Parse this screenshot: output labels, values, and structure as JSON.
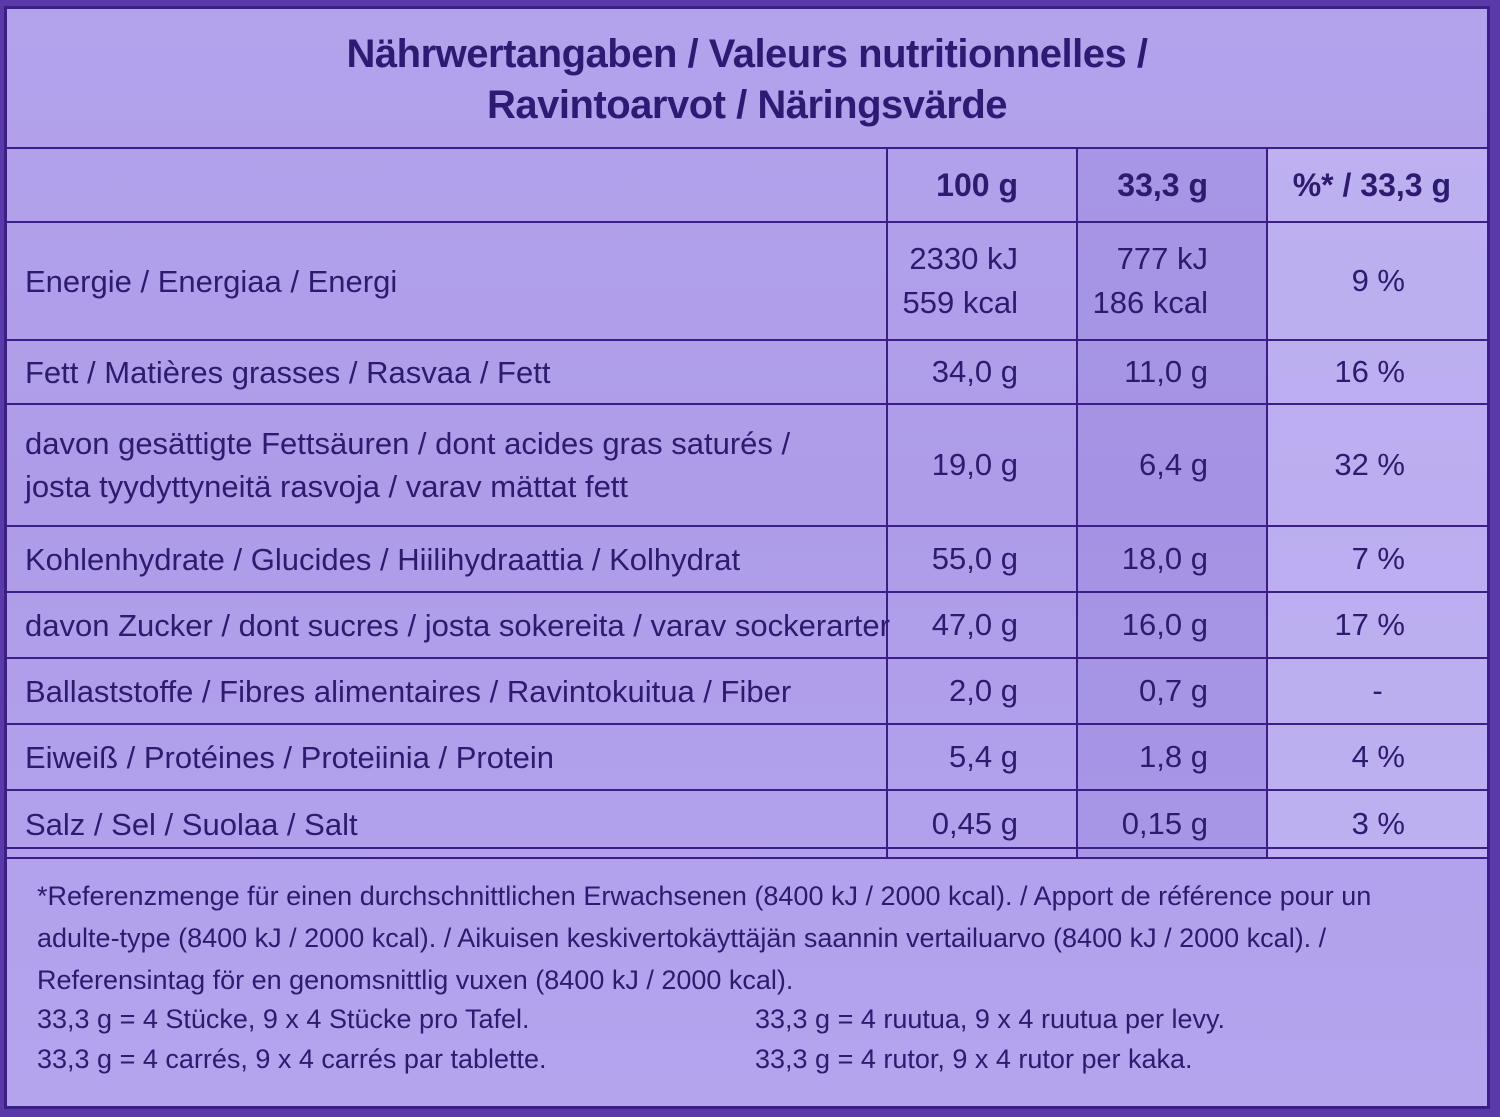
{
  "title": {
    "line1": "Nährwertangaben / Valeurs nutritionnelles /",
    "line2": "Ravintoarvot / Näringsvärde"
  },
  "table": {
    "headers": {
      "label": "",
      "per_100g": "100 g",
      "per_portion": "33,3 g",
      "pct_portion": "%* / 33,3 g"
    },
    "rows": [
      {
        "label_line1": "Energie / Energiaa / Energi",
        "label_line2": "",
        "per_100g_line1": "2330 kJ",
        "per_100g_line2": "559 kcal",
        "per_portion_line1": "777 kJ",
        "per_portion_line2": "186 kcal",
        "pct": "9 %"
      },
      {
        "label_line1": "Fett / Matières grasses / Rasvaa / Fett",
        "label_line2": "",
        "per_100g_line1": "34,0 g",
        "per_100g_line2": "",
        "per_portion_line1": "11,0 g",
        "per_portion_line2": "",
        "pct": "16 %"
      },
      {
        "label_line1": "davon gesättigte Fettsäuren / dont acides gras saturés /",
        "label_line2": "josta tyydyttyneitä rasvoja / varav mättat fett",
        "per_100g_line1": "19,0 g",
        "per_100g_line2": "",
        "per_portion_line1": "6,4 g",
        "per_portion_line2": "",
        "pct": "32 %"
      },
      {
        "label_line1": "Kohlenhydrate / Glucides / Hiilihydraattia / Kolhydrat",
        "label_line2": "",
        "per_100g_line1": "55,0 g",
        "per_100g_line2": "",
        "per_portion_line1": "18,0 g",
        "per_portion_line2": "",
        "pct": "7 %"
      },
      {
        "label_line1": "davon Zucker / dont sucres / josta sokereita / varav sockerarter",
        "label_line2": "",
        "per_100g_line1": "47,0 g",
        "per_100g_line2": "",
        "per_portion_line1": "16,0 g",
        "per_portion_line2": "",
        "pct": "17 %"
      },
      {
        "label_line1": "Ballaststoffe / Fibres alimentaires  / Ravintokuitua / Fiber",
        "label_line2": "",
        "per_100g_line1": "2,0 g",
        "per_100g_line2": "",
        "per_portion_line1": "0,7 g",
        "per_portion_line2": "",
        "pct": "-"
      },
      {
        "label_line1": "Eiweiß / Protéines / Proteiinia / Protein",
        "label_line2": "",
        "per_100g_line1": "5,4 g",
        "per_100g_line2": "",
        "per_portion_line1": "1,8 g",
        "per_portion_line2": "",
        "pct": "4 %"
      },
      {
        "label_line1": "Salz / Sel / Suolaa / Salt",
        "label_line2": "",
        "per_100g_line1": "0,45 g",
        "per_100g_line2": "",
        "per_portion_line1": "0,15 g",
        "per_portion_line2": "",
        "pct": "3 %"
      }
    ]
  },
  "footnote": {
    "line1": "*Referenzmenge für einen durchschnittlichen Erwachsenen (8400 kJ / 2000 kcal). / Apport de référence pour un",
    "line2": "adulte-type (8400 kJ / 2000 kcal). / Aikuisen keskivertokäyttäjän saannin vertailuarvo (8400 kJ / 2000 kcal). /",
    "line3": "Referensintag för en genomsnittlig vuxen (8400 kJ / 2000 kcal)."
  },
  "portions": {
    "de": "33,3 g = 4 Stücke, 9 x 4 Stücke pro Tafel.",
    "fr": "33,3 g = 4 carrés, 9 x 4 carrés par tablette.",
    "fi": "33,3 g = 4 ruutua, 9 x 4 ruutua per levy.",
    "sv": "33,3 g = 4 rutor, 9 x 4 rutor per kaka."
  },
  "colors": {
    "background": "#b1a0ea",
    "border": "#3b1f86",
    "text": "#2e1a6e"
  }
}
